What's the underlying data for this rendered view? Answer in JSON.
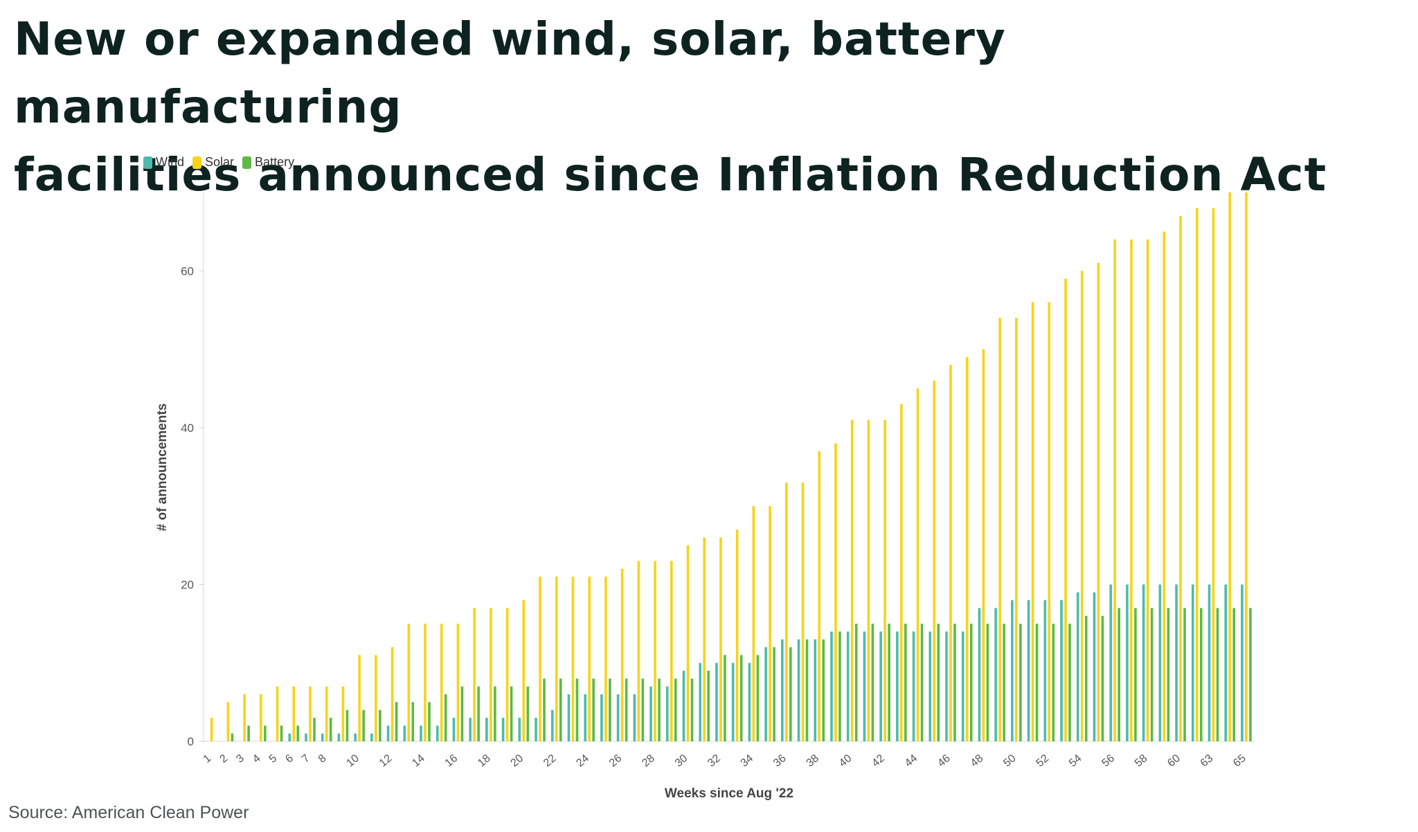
{
  "title_lines": [
    "New or expanded wind, solar, battery manufacturing",
    "facilities announced since Inflation Reduction Act"
  ],
  "source": "Source: American Clean Power",
  "colors": {
    "wind": "#4dbbab",
    "solar": "#f7d417",
    "battery": "#5cb946",
    "title": "#0e2320"
  },
  "chart_data": {
    "type": "bar",
    "title": "New or expanded wind, solar, battery manufacturing facilities announced since Inflation Reduction Act",
    "xlabel": "Weeks since Aug '22",
    "ylabel": "# of announcements",
    "ylim": [
      0,
      70
    ],
    "yticks": [
      0,
      20,
      40,
      60
    ],
    "legend_position": "top-left",
    "categories": [
      1,
      2,
      3,
      4,
      5,
      6,
      7,
      8,
      9,
      10,
      11,
      12,
      13,
      14,
      15,
      16,
      17,
      18,
      19,
      20,
      21,
      22,
      23,
      24,
      25,
      26,
      27,
      28,
      29,
      30,
      31,
      32,
      33,
      34,
      35,
      36,
      37,
      38,
      39,
      40,
      41,
      42,
      43,
      44,
      45,
      46,
      47,
      48,
      49,
      50,
      51,
      52,
      53,
      54,
      55,
      56,
      57,
      58,
      59,
      60,
      61,
      63,
      64,
      65
    ],
    "xtick_labels": [
      "1",
      "2",
      "3",
      "4",
      "5",
      "6",
      "7",
      "8",
      "10",
      "12",
      "14",
      "16",
      "18",
      "20",
      "22",
      "24",
      "26",
      "28",
      "30",
      "32",
      "34",
      "36",
      "38",
      "40",
      "42",
      "44",
      "46",
      "48",
      "50",
      "52",
      "54",
      "56",
      "58",
      "60",
      "63",
      "65"
    ],
    "series": [
      {
        "name": "Wind",
        "color": "#4dbbab",
        "values": [
          0,
          0,
          0,
          0,
          0,
          1,
          1,
          1,
          1,
          1,
          1,
          2,
          2,
          2,
          2,
          3,
          3,
          3,
          3,
          3,
          3,
          4,
          6,
          6,
          6,
          6,
          6,
          7,
          7,
          9,
          10,
          10,
          10,
          10,
          12,
          13,
          13,
          13,
          14,
          14,
          14,
          14,
          14,
          14,
          14,
          14,
          14,
          17,
          17,
          18,
          18,
          18,
          18,
          19,
          19,
          20,
          20,
          20,
          20,
          20,
          20,
          20,
          20,
          20
        ]
      },
      {
        "name": "Solar",
        "color": "#f7d417",
        "values": [
          3,
          5,
          6,
          6,
          7,
          7,
          7,
          7,
          7,
          11,
          11,
          12,
          15,
          15,
          15,
          15,
          17,
          17,
          17,
          18,
          21,
          21,
          21,
          21,
          21,
          22,
          23,
          23,
          23,
          25,
          26,
          26,
          27,
          30,
          30,
          33,
          33,
          37,
          38,
          41,
          41,
          41,
          43,
          45,
          46,
          48,
          49,
          50,
          54,
          54,
          56,
          56,
          59,
          60,
          61,
          64,
          64,
          64,
          65,
          67,
          68,
          68,
          70,
          70
        ]
      },
      {
        "name": "Battery",
        "color": "#5cb946",
        "values": [
          0,
          1,
          2,
          2,
          2,
          2,
          3,
          3,
          4,
          4,
          4,
          5,
          5,
          5,
          6,
          7,
          7,
          7,
          7,
          7,
          8,
          8,
          8,
          8,
          8,
          8,
          8,
          8,
          8,
          8,
          9,
          11,
          11,
          11,
          12,
          12,
          13,
          13,
          14,
          15,
          15,
          15,
          15,
          15,
          15,
          15,
          15,
          15,
          15,
          15,
          15,
          15,
          15,
          16,
          16,
          17,
          17,
          17,
          17,
          17,
          17,
          17,
          17,
          17
        ]
      }
    ]
  }
}
